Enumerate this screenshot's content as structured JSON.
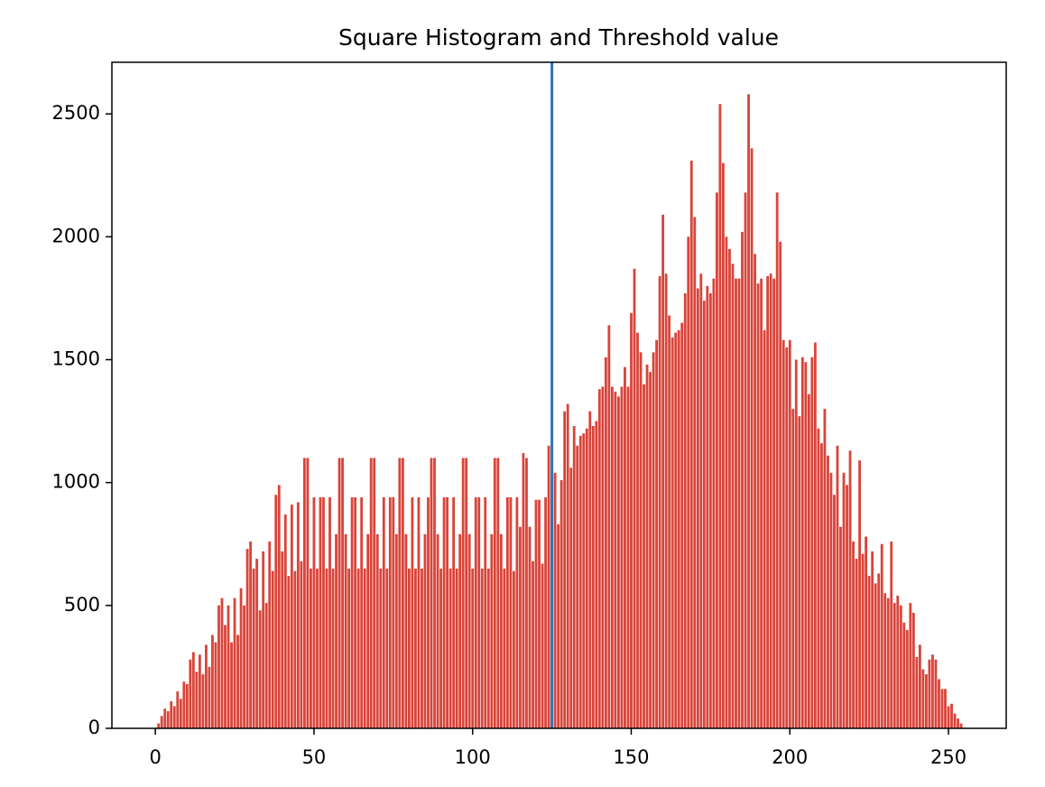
{
  "chart_data": {
    "type": "bar",
    "title": "Square Histogram and Threshold value",
    "x": [
      0,
      1,
      2,
      3,
      4,
      5,
      6,
      7,
      8,
      9,
      10,
      11,
      12,
      13,
      14,
      15,
      16,
      17,
      18,
      19,
      20,
      21,
      22,
      23,
      24,
      25,
      26,
      27,
      28,
      29,
      30,
      31,
      32,
      33,
      34,
      35,
      36,
      37,
      38,
      39,
      40,
      41,
      42,
      43,
      44,
      45,
      46,
      47,
      48,
      49,
      50,
      51,
      52,
      53,
      54,
      55,
      56,
      57,
      58,
      59,
      60,
      61,
      62,
      63,
      64,
      65,
      66,
      67,
      68,
      69,
      70,
      71,
      72,
      73,
      74,
      75,
      76,
      77,
      78,
      79,
      80,
      81,
      82,
      83,
      84,
      85,
      86,
      87,
      88,
      89,
      90,
      91,
      92,
      93,
      94,
      95,
      96,
      97,
      98,
      99,
      100,
      101,
      102,
      103,
      104,
      105,
      106,
      107,
      108,
      109,
      110,
      111,
      112,
      113,
      114,
      115,
      116,
      117,
      118,
      119,
      120,
      121,
      122,
      123,
      124,
      125,
      126,
      127,
      128,
      129,
      130,
      131,
      132,
      133,
      134,
      135,
      136,
      137,
      138,
      139,
      140,
      141,
      142,
      143,
      144,
      145,
      146,
      147,
      148,
      149,
      150,
      151,
      152,
      153,
      154,
      155,
      156,
      157,
      158,
      159,
      160,
      161,
      162,
      163,
      164,
      165,
      166,
      167,
      168,
      169,
      170,
      171,
      172,
      173,
      174,
      175,
      176,
      177,
      178,
      179,
      180,
      181,
      182,
      183,
      184,
      185,
      186,
      187,
      188,
      189,
      190,
      191,
      192,
      193,
      194,
      195,
      196,
      197,
      198,
      199,
      200,
      201,
      202,
      203,
      204,
      205,
      206,
      207,
      208,
      209,
      210,
      211,
      212,
      213,
      214,
      215,
      216,
      217,
      218,
      219,
      220,
      221,
      222,
      223,
      224,
      225,
      226,
      227,
      228,
      229,
      230,
      231,
      232,
      233,
      234,
      235,
      236,
      237,
      238,
      239,
      240,
      241,
      242,
      243,
      244,
      245,
      246,
      247,
      248,
      249,
      250,
      251,
      252,
      253,
      254,
      255
    ],
    "values": [
      0,
      20,
      50,
      80,
      70,
      110,
      90,
      150,
      120,
      190,
      180,
      280,
      310,
      230,
      300,
      220,
      340,
      250,
      380,
      350,
      500,
      530,
      420,
      500,
      350,
      530,
      380,
      570,
      500,
      730,
      760,
      650,
      690,
      480,
      720,
      510,
      760,
      640,
      950,
      990,
      720,
      870,
      620,
      910,
      640,
      920,
      680,
      1100,
      1100,
      650,
      940,
      650,
      940,
      940,
      650,
      940,
      650,
      790,
      1100,
      1100,
      790,
      650,
      940,
      940,
      650,
      940,
      650,
      790,
      1100,
      1100,
      790,
      650,
      940,
      650,
      940,
      940,
      790,
      1100,
      1100,
      790,
      650,
      940,
      650,
      940,
      650,
      790,
      940,
      1100,
      1100,
      790,
      650,
      940,
      940,
      650,
      940,
      650,
      790,
      1100,
      1100,
      790,
      650,
      940,
      940,
      650,
      940,
      650,
      790,
      1100,
      1100,
      790,
      650,
      940,
      940,
      640,
      940,
      820,
      1120,
      1100,
      820,
      680,
      930,
      930,
      670,
      940,
      1150,
      1020,
      1040,
      830,
      1010,
      1290,
      1320,
      1060,
      1230,
      1150,
      1190,
      1200,
      1220,
      1290,
      1230,
      1250,
      1380,
      1390,
      1510,
      1640,
      1390,
      1370,
      1350,
      1390,
      1470,
      1390,
      1690,
      1870,
      1610,
      1530,
      1400,
      1480,
      1450,
      1530,
      1580,
      1840,
      2090,
      1850,
      1680,
      1590,
      1610,
      1620,
      1650,
      1770,
      2000,
      2310,
      2080,
      1790,
      1850,
      1740,
      1800,
      1770,
      1830,
      2180,
      2540,
      2300,
      2000,
      1950,
      1890,
      1830,
      1830,
      2020,
      2180,
      2580,
      2360,
      1930,
      1810,
      1830,
      1620,
      1840,
      1850,
      1830,
      2180,
      1980,
      1580,
      1550,
      1580,
      1300,
      1500,
      1270,
      1510,
      1490,
      1360,
      1510,
      1570,
      1220,
      1160,
      1300,
      1110,
      1040,
      950,
      1150,
      820,
      1040,
      990,
      1130,
      760,
      690,
      1090,
      710,
      780,
      620,
      720,
      590,
      630,
      750,
      550,
      530,
      760,
      510,
      540,
      500,
      430,
      400,
      510,
      470,
      290,
      340,
      240,
      220,
      280,
      300,
      280,
      200,
      160,
      160,
      90,
      100,
      60,
      40,
      20,
      0
    ],
    "color": "#d9443a",
    "threshold": 125,
    "threshold_color": "#2f74b0",
    "xlim": [
      -13.7,
      268.2
    ],
    "ylim": [
      0,
      2710
    ],
    "xticks": [
      0,
      50,
      100,
      150,
      200,
      250
    ],
    "yticks": [
      0,
      500,
      1000,
      1500,
      2000,
      2500
    ]
  }
}
